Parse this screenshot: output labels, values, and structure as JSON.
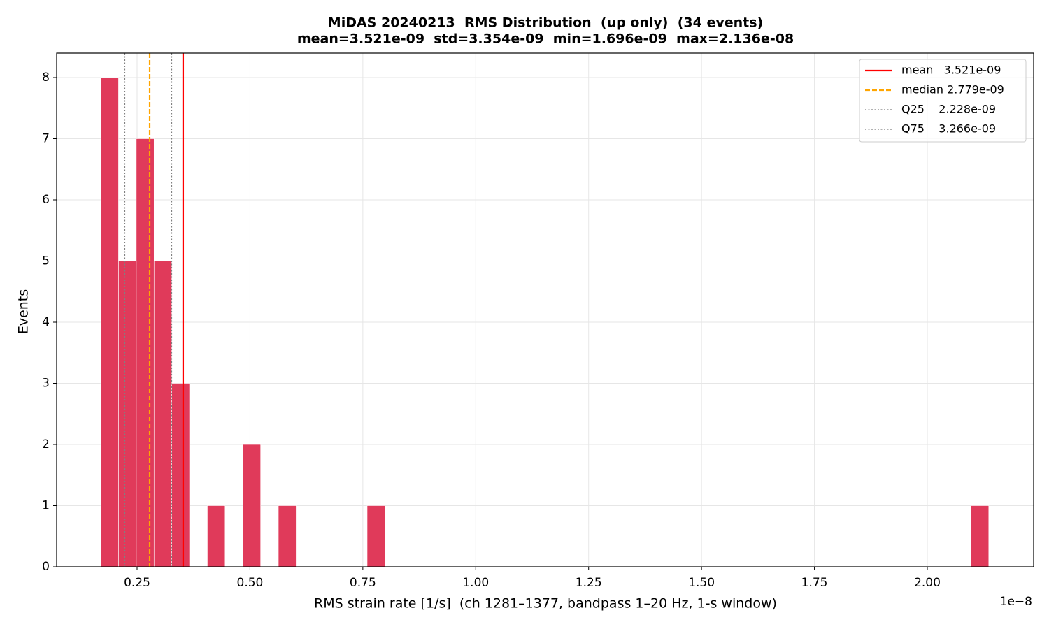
{
  "chart_data": {
    "type": "histogram",
    "title": "MiDAS 20240213  RMS Distribution  (up only)  (34 events)",
    "subtitle": "mean=3.521e-09  std=3.354e-09  min=1.696e-09  max=2.136e-08",
    "x_label": "RMS strain rate [1/s]  (ch 1281–1377, bandpass 1–20 Hz, 1-s window)",
    "y_label": "Events",
    "x_offset_label": "1e−8",
    "color": "#e03a5a",
    "bins": [
      0.1696,
      0.2089,
      0.2483,
      0.2876,
      0.3269,
      0.3662,
      0.4056,
      0.4449,
      0.4842,
      0.5236,
      0.5629,
      0.6022,
      0.6415,
      0.6809,
      0.7202,
      0.7595,
      0.7988,
      0.8382,
      0.8775,
      0.9168,
      0.9562,
      0.9955,
      1.0348,
      1.0741,
      1.1135,
      1.1528,
      1.1921,
      1.2315,
      1.2708,
      1.3101,
      1.3494,
      1.3888,
      1.4281,
      1.4674,
      1.5068,
      1.5461,
      1.5854,
      1.6247,
      1.6641,
      1.7034,
      1.7427,
      1.782,
      1.8214,
      1.8607,
      1.9,
      1.9394,
      1.9787,
      2.018,
      2.0573,
      2.0967,
      2.136
    ],
    "counts": [
      8,
      5,
      7,
      5,
      3,
      0,
      1,
      0,
      2,
      0,
      1,
      0,
      0,
      0,
      0,
      1,
      0,
      0,
      0,
      0,
      0,
      0,
      0,
      0,
      0,
      0,
      0,
      0,
      0,
      0,
      0,
      0,
      0,
      0,
      0,
      0,
      0,
      0,
      0,
      0,
      0,
      0,
      0,
      0,
      0,
      0,
      0,
      0,
      0,
      1
    ],
    "lines": [
      {
        "name": "mean   3.521e-09",
        "value": 0.3521,
        "color": "#ff0000",
        "style": "solid"
      },
      {
        "name": "median 2.779e-09",
        "value": 0.2779,
        "color": "#ffa500",
        "style": "dashed"
      },
      {
        "name": "Q25    2.228e-09",
        "value": 0.2228,
        "color": "#808080",
        "style": "dotted"
      },
      {
        "name": "Q75    3.266e-09",
        "value": 0.3266,
        "color": "#808080",
        "style": "dotted"
      }
    ],
    "xlim": [
      0.0719,
      2.2354
    ],
    "ylim": [
      0,
      8.4
    ],
    "xticks": [
      0.25,
      {
        "value": 0.5,
        "label": "0.50"
      },
      0.75,
      {
        "value": 1,
        "label": "1.00"
      },
      1.25,
      {
        "value": 1.5,
        "label": "1.50"
      },
      1.75,
      {
        "value": 2,
        "label": "2.00"
      }
    ],
    "yticks": [
      0,
      1,
      2,
      3,
      4,
      5,
      6,
      7,
      8
    ],
    "grid": true,
    "legend": "upper right"
  }
}
